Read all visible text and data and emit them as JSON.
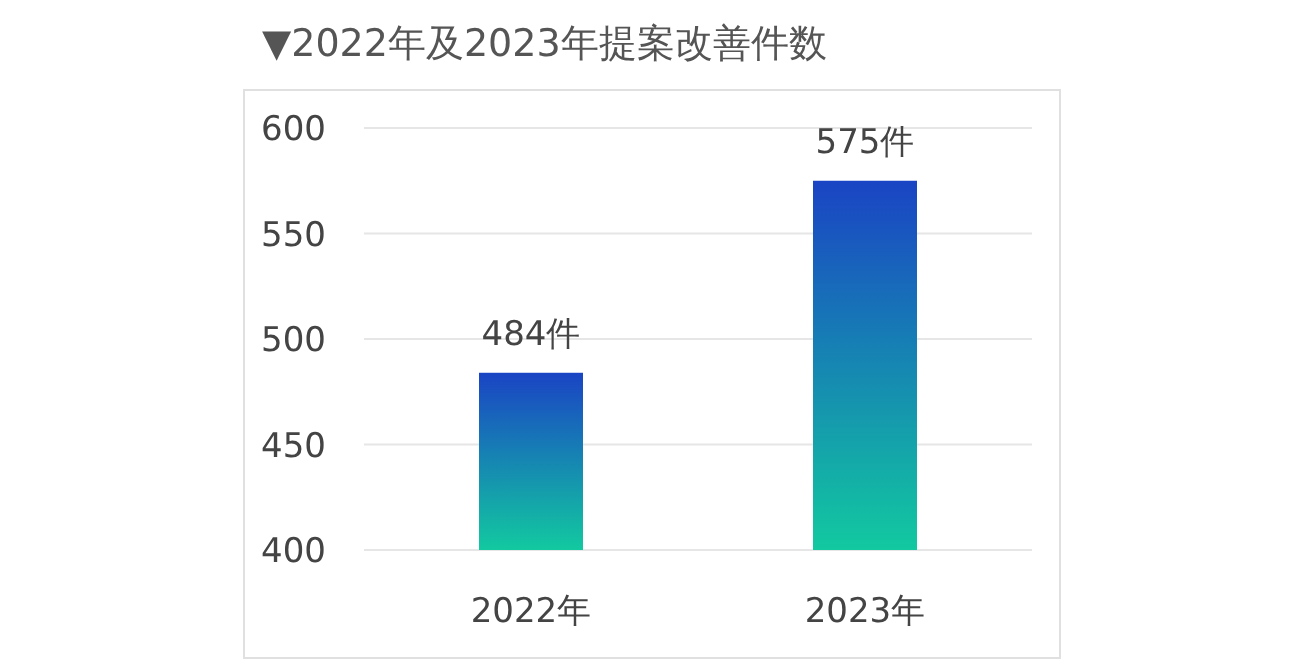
{
  "chart_data": {
    "type": "bar",
    "title": "▼2022年及2023年提案改善件数",
    "categories": [
      "2022年",
      "2023年"
    ],
    "values": [
      484,
      575
    ],
    "value_labels": [
      "484件",
      "575件"
    ],
    "color": "#1a44c4",
    "ylim": [
      400,
      600
    ],
    "yticks": [
      400,
      450,
      500,
      550,
      600
    ],
    "grid": "y"
  }
}
